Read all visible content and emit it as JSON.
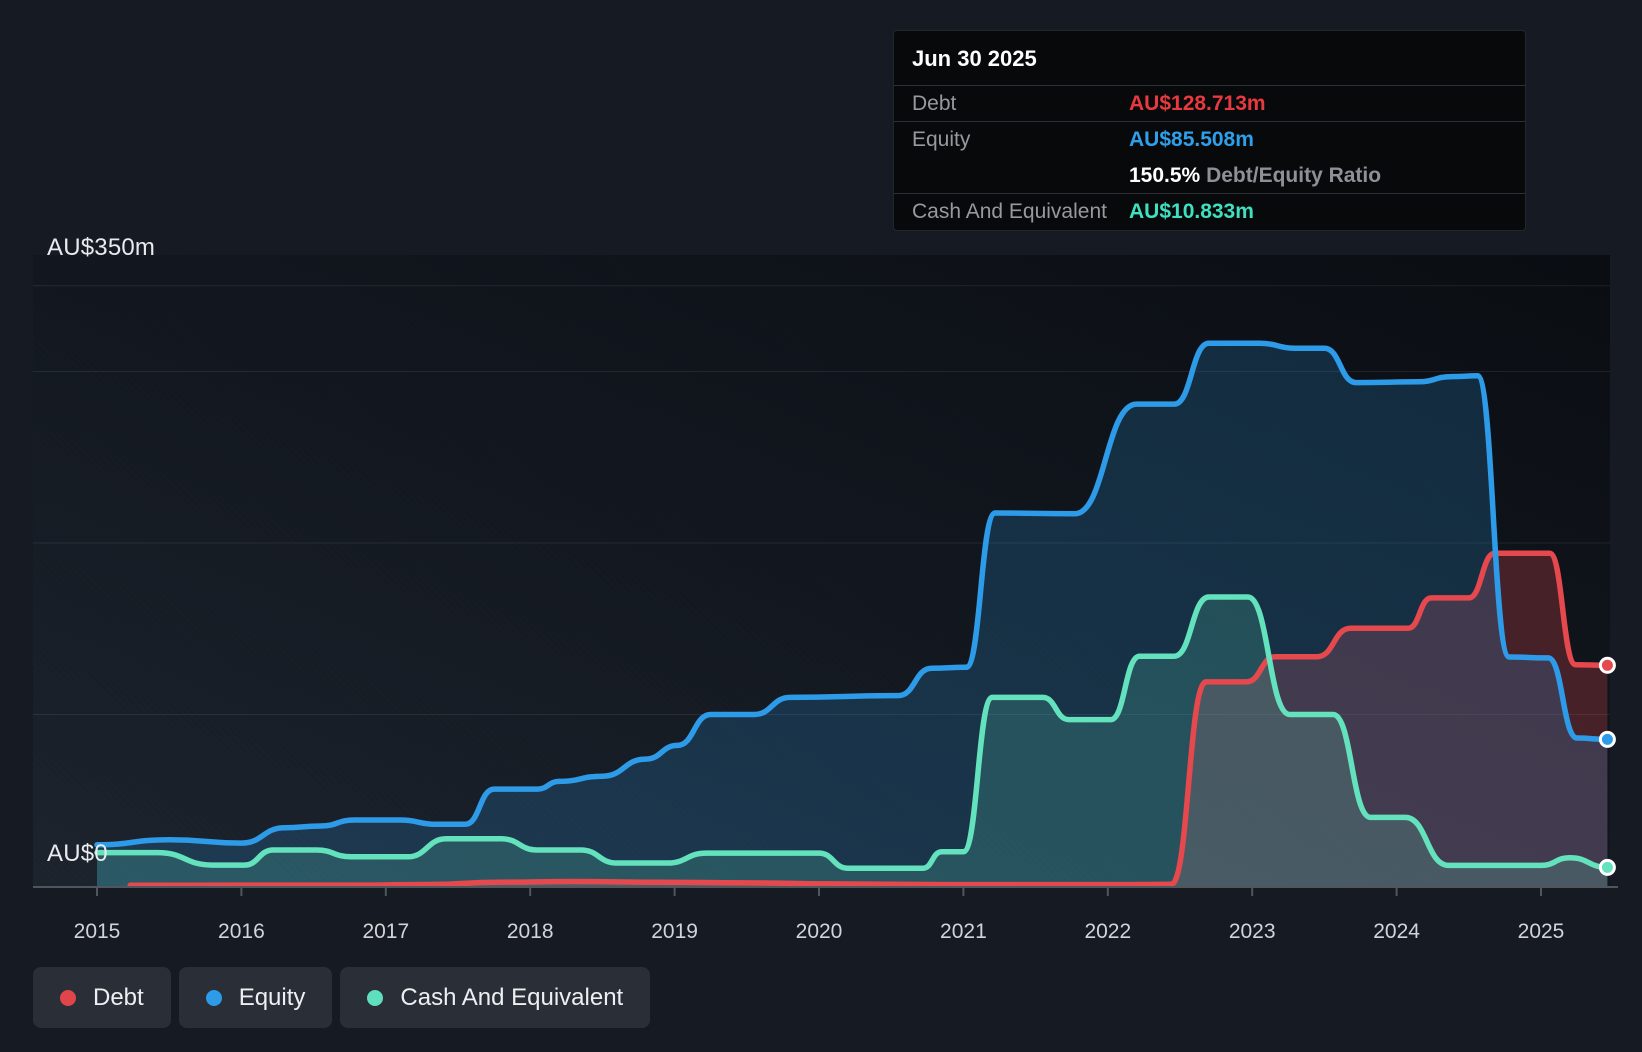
{
  "tooltip": {
    "date": "Jun 30 2025",
    "rows": [
      {
        "label": "Debt",
        "value": "AU$128.713m",
        "value_color": "#e8393f"
      },
      {
        "label": "Equity",
        "value": "AU$85.508m",
        "value_color": "#2f9fe9"
      },
      {
        "label": "Cash And Equivalent",
        "value": "AU$10.833m",
        "value_color": "#3fe0c0"
      }
    ],
    "ratio": {
      "value": "150.5%",
      "label": "Debt/Equity Ratio"
    }
  },
  "y_axis": {
    "max_label": "AU$350m",
    "min_label": "AU$0"
  },
  "legend": {
    "items": [
      {
        "label": "Debt",
        "color": "#e0454b"
      },
      {
        "label": "Equity",
        "color": "#2d9be8"
      },
      {
        "label": "Cash And Equivalent",
        "color": "#5fe0bc"
      }
    ]
  },
  "chart_data": {
    "type": "area",
    "x_unit": "year",
    "xlim": [
      2015.0,
      2025.46
    ],
    "ylim": [
      0,
      350
    ],
    "y_unit": "AU$m",
    "gridline_values": [
      350,
      300,
      200,
      100
    ],
    "x_tick_years": [
      "2015",
      "2016",
      "2017",
      "2018",
      "2019",
      "2020",
      "2021",
      "2022",
      "2023",
      "2024",
      "2025"
    ],
    "legend_position": "bottom-left",
    "grid": true,
    "series": [
      {
        "name": "Debt",
        "line_color": "#e5484d",
        "fill_opacity": 0.26,
        "end_value": 128.713,
        "points": [
          [
            2015.23,
            0.4
          ],
          [
            2016.0,
            0.5
          ],
          [
            2016.8,
            0.5
          ],
          [
            2017.3,
            0.9
          ],
          [
            2017.78,
            2.2
          ],
          [
            2018.3,
            2.6
          ],
          [
            2018.9,
            2.2
          ],
          [
            2019.5,
            1.8
          ],
          [
            2020.1,
            1.2
          ],
          [
            2020.9,
            0.8
          ],
          [
            2021.6,
            0.8
          ],
          [
            2022.15,
            0.8
          ],
          [
            2022.44,
            1.0
          ],
          [
            2022.68,
            119
          ],
          [
            2022.96,
            119
          ],
          [
            2023.16,
            133.7
          ],
          [
            2023.45,
            133.7
          ],
          [
            2023.68,
            150.3
          ],
          [
            2024.08,
            150.3
          ],
          [
            2024.24,
            168
          ],
          [
            2024.5,
            168
          ],
          [
            2024.68,
            194
          ],
          [
            2025.06,
            194
          ],
          [
            2025.24,
            129
          ],
          [
            2025.46,
            128.713
          ]
        ]
      },
      {
        "name": "Equity",
        "line_color": "#2d9be8",
        "fill_opacity": 0.2,
        "end_value": 85.508,
        "points": [
          [
            2015.0,
            24
          ],
          [
            2015.5,
            27
          ],
          [
            2016.0,
            25
          ],
          [
            2016.3,
            34
          ],
          [
            2016.55,
            35
          ],
          [
            2016.78,
            38.5
          ],
          [
            2017.1,
            38.5
          ],
          [
            2017.35,
            36
          ],
          [
            2017.55,
            36
          ],
          [
            2017.75,
            56.5
          ],
          [
            2018.05,
            56.5
          ],
          [
            2018.2,
            61
          ],
          [
            2018.5,
            64
          ],
          [
            2018.8,
            74
          ],
          [
            2019.02,
            82
          ],
          [
            2019.25,
            100
          ],
          [
            2019.55,
            100
          ],
          [
            2019.8,
            110
          ],
          [
            2020.55,
            111
          ],
          [
            2020.78,
            127
          ],
          [
            2021.02,
            127.5
          ],
          [
            2021.22,
            217.5
          ],
          [
            2021.77,
            217
          ],
          [
            2022.2,
            281
          ],
          [
            2022.46,
            281
          ],
          [
            2022.7,
            316.5
          ],
          [
            2023.05,
            316.5
          ],
          [
            2023.3,
            313.5
          ],
          [
            2023.5,
            313.5
          ],
          [
            2023.72,
            293.5
          ],
          [
            2024.15,
            294
          ],
          [
            2024.38,
            297
          ],
          [
            2024.56,
            297.5
          ],
          [
            2024.78,
            133.5
          ],
          [
            2025.05,
            133
          ],
          [
            2025.25,
            86.3
          ],
          [
            2025.46,
            85.508
          ]
        ]
      },
      {
        "name": "Cash And Equivalent",
        "line_color": "#63e2bd",
        "fill_opacity": 0.18,
        "end_value": 10.833,
        "points": [
          [
            2015.0,
            19.5
          ],
          [
            2015.42,
            19.5
          ],
          [
            2015.8,
            12.2
          ],
          [
            2016.02,
            12.2
          ],
          [
            2016.22,
            21
          ],
          [
            2016.52,
            21
          ],
          [
            2016.76,
            17
          ],
          [
            2017.15,
            17
          ],
          [
            2017.42,
            27.5
          ],
          [
            2017.8,
            27.5
          ],
          [
            2018.05,
            21
          ],
          [
            2018.35,
            21
          ],
          [
            2018.6,
            13.4
          ],
          [
            2018.95,
            13.4
          ],
          [
            2019.22,
            19.2
          ],
          [
            2020.0,
            19.2
          ],
          [
            2020.2,
            10.4
          ],
          [
            2020.72,
            10.4
          ],
          [
            2020.85,
            20
          ],
          [
            2021.0,
            20
          ],
          [
            2021.2,
            110
          ],
          [
            2021.55,
            110
          ],
          [
            2021.73,
            97
          ],
          [
            2022.02,
            97
          ],
          [
            2022.22,
            134
          ],
          [
            2022.46,
            134
          ],
          [
            2022.7,
            168.5
          ],
          [
            2022.97,
            168.5
          ],
          [
            2023.26,
            100
          ],
          [
            2023.56,
            100
          ],
          [
            2023.82,
            40
          ],
          [
            2024.06,
            40
          ],
          [
            2024.36,
            12
          ],
          [
            2025.0,
            12
          ],
          [
            2025.2,
            16.5
          ],
          [
            2025.46,
            10.833
          ]
        ]
      }
    ]
  }
}
